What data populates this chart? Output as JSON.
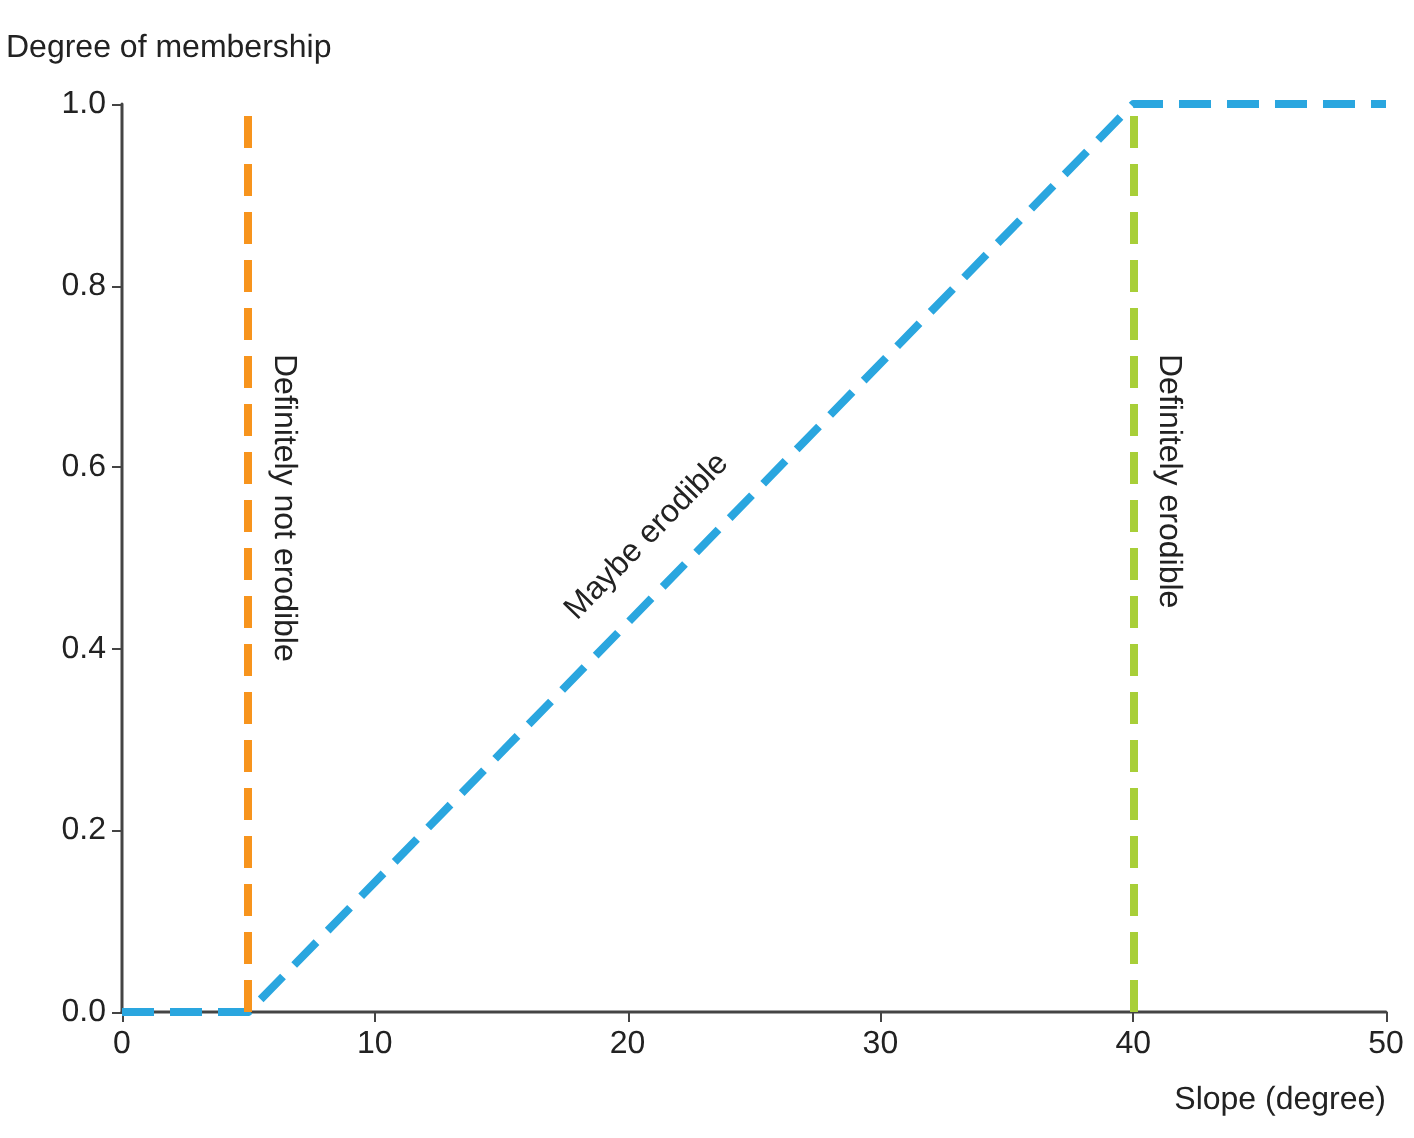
{
  "chart_data": {
    "type": "line",
    "xlabel": "Slope (degree)",
    "ylabel": "Degree of membership",
    "x": [
      0,
      5,
      40,
      50
    ],
    "series": [
      {
        "color": "#2aa6df",
        "values": [
          0,
          0,
          1,
          1
        ]
      }
    ],
    "xlim": [
      0,
      50
    ],
    "ylim": [
      0,
      1.0
    ],
    "xticks": [
      0,
      10,
      20,
      30,
      40,
      50
    ],
    "yticks": [
      {
        "value": 0,
        "label": "0.0"
      },
      {
        "value": 0.2,
        "label": "0.2"
      },
      {
        "value": 0.4,
        "label": "0.4"
      },
      {
        "value": 0.6,
        "label": "0.6"
      },
      {
        "value": 0.8,
        "label": "0.8"
      },
      {
        "value": 1,
        "label": "1.0"
      }
    ],
    "ref_lines": [
      {
        "axis": "x",
        "value": 5,
        "label": "Definitely not erodible",
        "color": "#f7941d",
        "line_style": "dashed"
      },
      {
        "axis": "x",
        "value": 40,
        "label": "Definitely erodible",
        "color": "#a8cf38",
        "line_style": "dashed"
      }
    ],
    "annotations": [
      {
        "text": "Maybe erodible",
        "x": 22,
        "y": 0.49
      }
    ],
    "marker": "none",
    "line_style": "dashed",
    "grid": false
  }
}
